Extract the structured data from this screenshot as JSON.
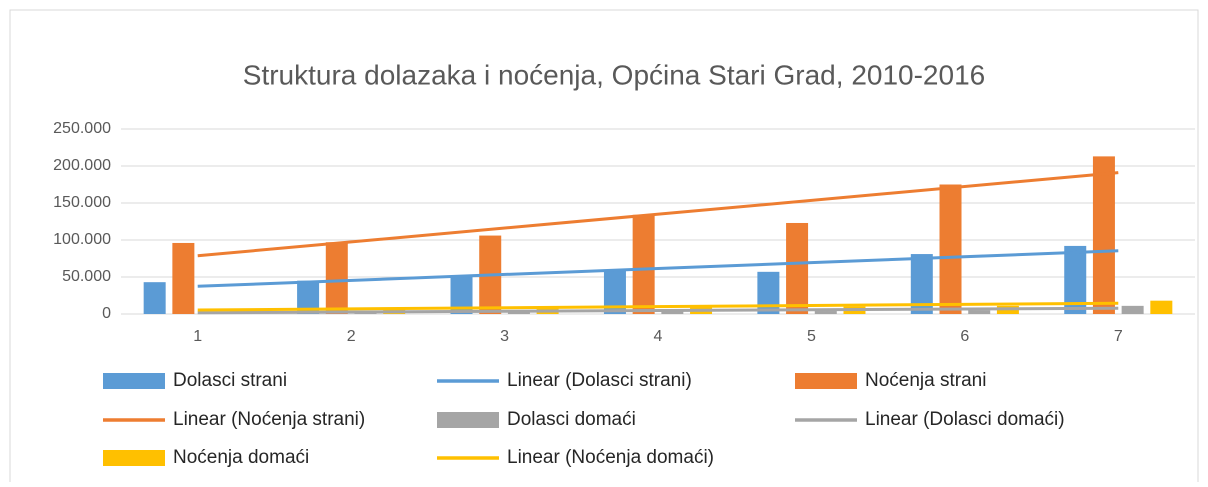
{
  "chart_data": {
    "type": "bar",
    "title": "Struktura dolazaka i noćenja, Općina Stari Grad, 2010-2016",
    "categories": [
      "1",
      "2",
      "3",
      "4",
      "5",
      "6",
      "7"
    ],
    "series": [
      {
        "name": "Dolasci strani",
        "color": "#5b9bd5",
        "trendline": "Linear (Dolasci strani)",
        "values": [
          43000,
          45000,
          52000,
          60000,
          57000,
          81000,
          92000
        ]
      },
      {
        "name": "Noćenja strani",
        "color": "#ed7d31",
        "trendline": "Linear (Noćenja strani)",
        "values": [
          96000,
          97000,
          106000,
          134000,
          123000,
          175000,
          213000
        ]
      },
      {
        "name": "Dolasci domaći",
        "color": "#a5a5a5",
        "trendline": "Linear (Dolasci domaći)",
        "values": [
          3000,
          3000,
          3000,
          4000,
          4000,
          5000,
          11000
        ]
      },
      {
        "name": "Noćenja domaći",
        "color": "#ffc000",
        "trendline": "Linear (Noćenja domaći)",
        "values": [
          7000,
          7000,
          8000,
          9000,
          10000,
          11000,
          18000
        ]
      }
    ],
    "ylim": [
      0,
      250000
    ],
    "yticks": [
      0,
      {
        "value": 50000,
        "label": "50.000"
      },
      {
        "value": 100000,
        "label": "100.000"
      },
      {
        "value": 150000,
        "label": "150.000"
      },
      {
        "value": 200000,
        "label": "200.000"
      },
      {
        "value": 250000,
        "label": "250.000"
      }
    ],
    "grid": true
  }
}
